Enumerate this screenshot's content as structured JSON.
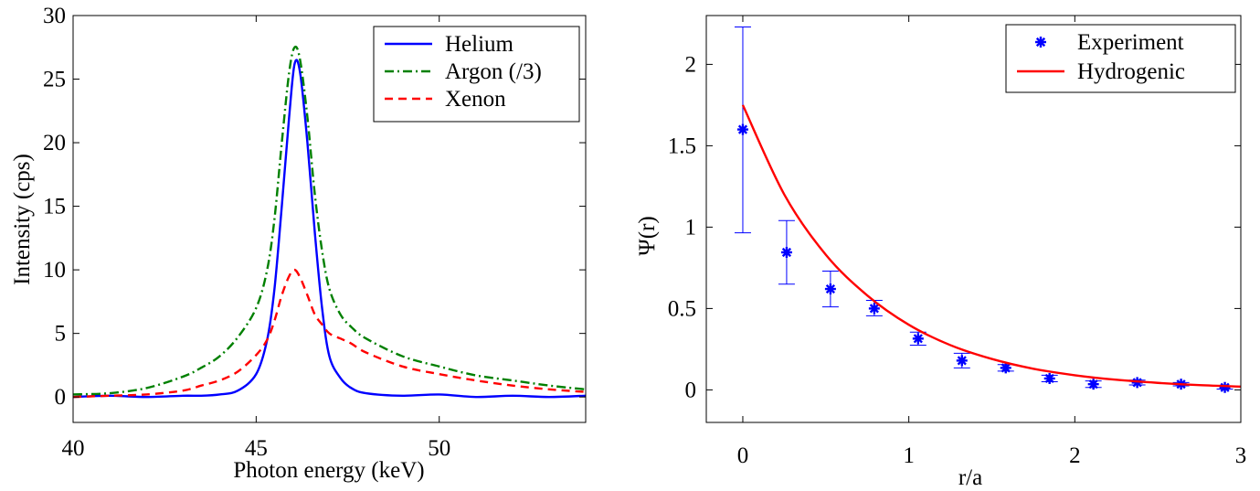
{
  "chart_data": [
    {
      "type": "line",
      "xlabel": "Photon energy (keV)",
      "ylabel": "Intensity (cps)",
      "xlim": [
        40,
        54
      ],
      "ylim": [
        -2,
        30
      ],
      "x_ticks": [
        "40",
        "45",
        "50"
      ],
      "y_ticks": [
        "0",
        "5",
        "10",
        "15",
        "20",
        "25",
        "30"
      ],
      "legend_position": "top-right",
      "series": [
        {
          "name": "Helium",
          "style": "solid",
          "color": "#0000ff",
          "x": [
            40,
            41,
            42,
            43,
            43.5,
            44,
            44.5,
            45,
            45.3,
            45.5,
            45.7,
            45.9,
            46.05,
            46.2,
            46.4,
            46.6,
            46.8,
            47,
            47.3,
            47.6,
            48,
            49,
            50,
            51,
            52,
            53,
            54
          ],
          "y": [
            0,
            0.1,
            0,
            0.1,
            0.1,
            0.2,
            0.5,
            1.8,
            4.5,
            8.5,
            15,
            22,
            26.2,
            25.5,
            20,
            13,
            7,
            3.2,
            1.5,
            0.7,
            0.3,
            0.1,
            0.2,
            0,
            0.1,
            0,
            0.1
          ]
        },
        {
          "name": "Argon (/3)",
          "style": "dash-dot",
          "color": "#008000",
          "x": [
            40,
            41,
            42,
            43,
            43.5,
            44,
            44.5,
            45,
            45.3,
            45.5,
            45.7,
            45.9,
            46.05,
            46.2,
            46.4,
            46.6,
            46.8,
            47,
            47.3,
            47.6,
            48,
            49,
            50,
            51,
            52,
            53,
            54
          ],
          "y": [
            0.2,
            0.3,
            0.7,
            1.6,
            2.3,
            3.2,
            4.7,
            7,
            10,
            14,
            20,
            25.5,
            27.5,
            26.5,
            22,
            16,
            11.5,
            8.5,
            6.5,
            5.5,
            4.6,
            3.2,
            2.4,
            1.7,
            1.3,
            0.9,
            0.6
          ]
        },
        {
          "name": "Xenon",
          "style": "dashed",
          "color": "#ff0000",
          "x": [
            40,
            41,
            42,
            43,
            43.5,
            44,
            44.5,
            45,
            45.3,
            45.5,
            45.7,
            45.9,
            46.05,
            46.2,
            46.4,
            46.6,
            46.8,
            47,
            47.3,
            47.6,
            48,
            49,
            50,
            51,
            52,
            53,
            54
          ],
          "y": [
            0,
            0.1,
            0.2,
            0.5,
            0.9,
            1.3,
            2,
            3.3,
            4.5,
            6,
            8,
            9.5,
            10,
            9.4,
            8,
            6.5,
            5.7,
            5,
            4.6,
            4.2,
            3.5,
            2.4,
            1.8,
            1.3,
            0.9,
            0.6,
            0.4
          ]
        }
      ]
    },
    {
      "type": "scatter",
      "xlabel": "r/a",
      "ylabel": "Ψ(r)",
      "xlim": [
        -0.22,
        3
      ],
      "ylim": [
        -0.2,
        2.3
      ],
      "x_ticks": [
        "0",
        "1",
        "2",
        "3"
      ],
      "y_ticks": [
        "0",
        "0.5",
        "1",
        "1.5",
        "2"
      ],
      "legend_position": "top-right",
      "series": [
        {
          "name": "Experiment",
          "style": "asterisk-with-errorbars",
          "color": "#0000ff",
          "x": [
            0,
            0.264,
            0.528,
            0.792,
            1.056,
            1.32,
            1.584,
            1.848,
            2.112,
            2.376,
            2.64,
            2.904
          ],
          "y": [
            1.6,
            0.845,
            0.62,
            0.5,
            0.315,
            0.18,
            0.135,
            0.07,
            0.035,
            0.045,
            0.035,
            0.015
          ],
          "err_low": [
            0.965,
            0.65,
            0.51,
            0.455,
            0.275,
            0.135,
            0.115,
            0.05,
            0.015,
            0.03,
            0.025,
            0.005
          ],
          "err_high": [
            2.23,
            1.04,
            0.73,
            0.55,
            0.355,
            0.225,
            0.155,
            0.09,
            0.055,
            0.06,
            0.045,
            0.025
          ]
        },
        {
          "name": "Hydrogenic",
          "style": "solid",
          "color": "#ff0000",
          "x": [
            0,
            0.25,
            0.5,
            0.75,
            1,
            1.25,
            1.5,
            1.75,
            2,
            2.25,
            2.5,
            2.75,
            3
          ],
          "y": [
            1.75,
            1.2,
            0.83,
            0.58,
            0.4,
            0.275,
            0.19,
            0.13,
            0.09,
            0.062,
            0.043,
            0.029,
            0.02
          ]
        }
      ]
    }
  ]
}
